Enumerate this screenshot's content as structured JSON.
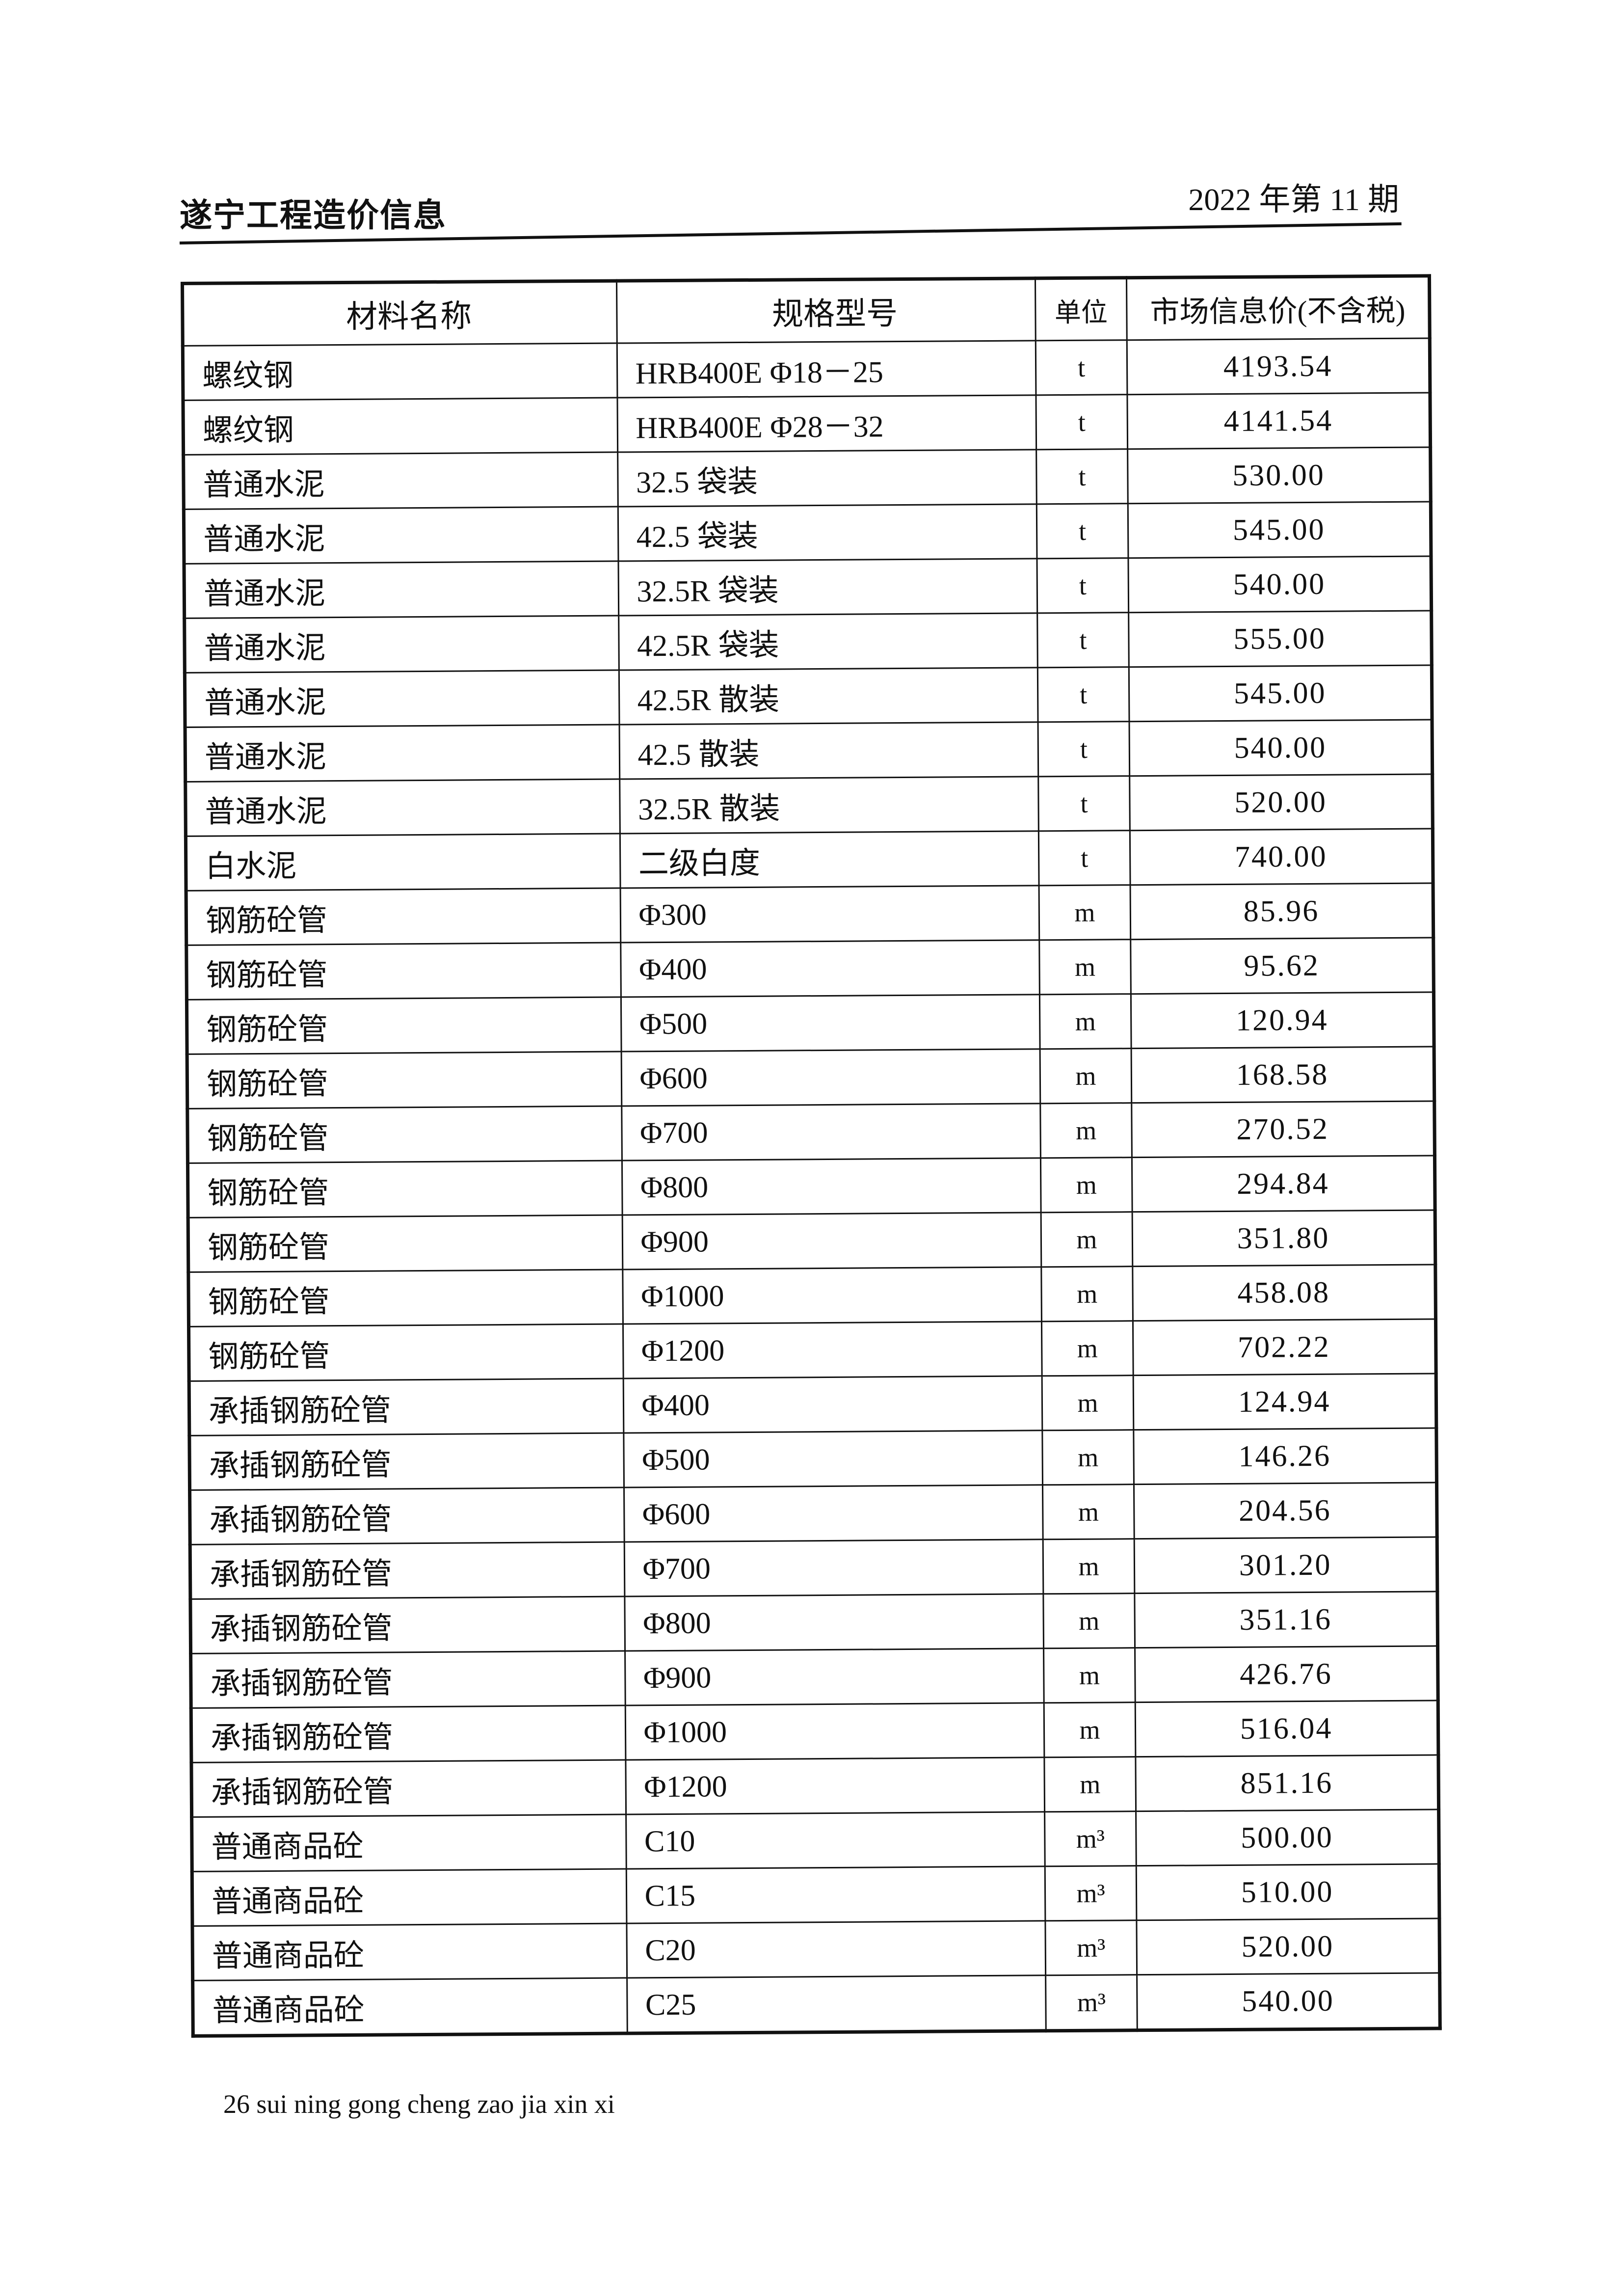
{
  "header": {
    "title": "遂宁工程造价信息",
    "issue": "2022 年第 11 期"
  },
  "table": {
    "columns": [
      "材料名称",
      "规格型号",
      "单位",
      "市场信息价(不含税)"
    ],
    "rows": [
      {
        "name": "螺纹钢",
        "spec": "HRB400E Φ18－25",
        "unit": "t",
        "price": "4193.54"
      },
      {
        "name": "螺纹钢",
        "spec": "HRB400E Φ28－32",
        "unit": "t",
        "price": "4141.54"
      },
      {
        "name": "普通水泥",
        "spec": "32.5 袋装",
        "unit": "t",
        "price": "530.00"
      },
      {
        "name": "普通水泥",
        "spec": "42.5 袋装",
        "unit": "t",
        "price": "545.00"
      },
      {
        "name": "普通水泥",
        "spec": "32.5R 袋装",
        "unit": "t",
        "price": "540.00"
      },
      {
        "name": "普通水泥",
        "spec": "42.5R 袋装",
        "unit": "t",
        "price": "555.00"
      },
      {
        "name": "普通水泥",
        "spec": "42.5R 散装",
        "unit": "t",
        "price": "545.00"
      },
      {
        "name": "普通水泥",
        "spec": "42.5 散装",
        "unit": "t",
        "price": "540.00"
      },
      {
        "name": "普通水泥",
        "spec": "32.5R 散装",
        "unit": "t",
        "price": "520.00"
      },
      {
        "name": "白水泥",
        "spec": "二级白度",
        "unit": "t",
        "price": "740.00"
      },
      {
        "name": "钢筋砼管",
        "spec": "Φ300",
        "unit": "m",
        "price": "85.96"
      },
      {
        "name": "钢筋砼管",
        "spec": "Φ400",
        "unit": "m",
        "price": "95.62"
      },
      {
        "name": "钢筋砼管",
        "spec": "Φ500",
        "unit": "m",
        "price": "120.94"
      },
      {
        "name": "钢筋砼管",
        "spec": "Φ600",
        "unit": "m",
        "price": "168.58"
      },
      {
        "name": "钢筋砼管",
        "spec": "Φ700",
        "unit": "m",
        "price": "270.52"
      },
      {
        "name": "钢筋砼管",
        "spec": "Φ800",
        "unit": "m",
        "price": "294.84"
      },
      {
        "name": "钢筋砼管",
        "spec": "Φ900",
        "unit": "m",
        "price": "351.80"
      },
      {
        "name": "钢筋砼管",
        "spec": "Φ1000",
        "unit": "m",
        "price": "458.08"
      },
      {
        "name": "钢筋砼管",
        "spec": "Φ1200",
        "unit": "m",
        "price": "702.22"
      },
      {
        "name": "承插钢筋砼管",
        "spec": "Φ400",
        "unit": "m",
        "price": "124.94"
      },
      {
        "name": "承插钢筋砼管",
        "spec": "Φ500",
        "unit": "m",
        "price": "146.26"
      },
      {
        "name": "承插钢筋砼管",
        "spec": "Φ600",
        "unit": "m",
        "price": "204.56"
      },
      {
        "name": "承插钢筋砼管",
        "spec": "Φ700",
        "unit": "m",
        "price": "301.20"
      },
      {
        "name": "承插钢筋砼管",
        "spec": "Φ800",
        "unit": "m",
        "price": "351.16"
      },
      {
        "name": "承插钢筋砼管",
        "spec": "Φ900",
        "unit": "m",
        "price": "426.76"
      },
      {
        "name": "承插钢筋砼管",
        "spec": "Φ1000",
        "unit": "m",
        "price": "516.04"
      },
      {
        "name": "承插钢筋砼管",
        "spec": "Φ1200",
        "unit": "m",
        "price": "851.16"
      },
      {
        "name": "普通商品砼",
        "spec": "C10",
        "unit": "m³",
        "price": "500.00"
      },
      {
        "name": "普通商品砼",
        "spec": "C15",
        "unit": "m³",
        "price": "510.00"
      },
      {
        "name": "普通商品砼",
        "spec": "C20",
        "unit": "m³",
        "price": "520.00"
      },
      {
        "name": "普通商品砼",
        "spec": "C25",
        "unit": "m³",
        "price": "540.00"
      }
    ]
  },
  "footer": {
    "text": "26 sui ning gong cheng zao jia xin xi"
  }
}
